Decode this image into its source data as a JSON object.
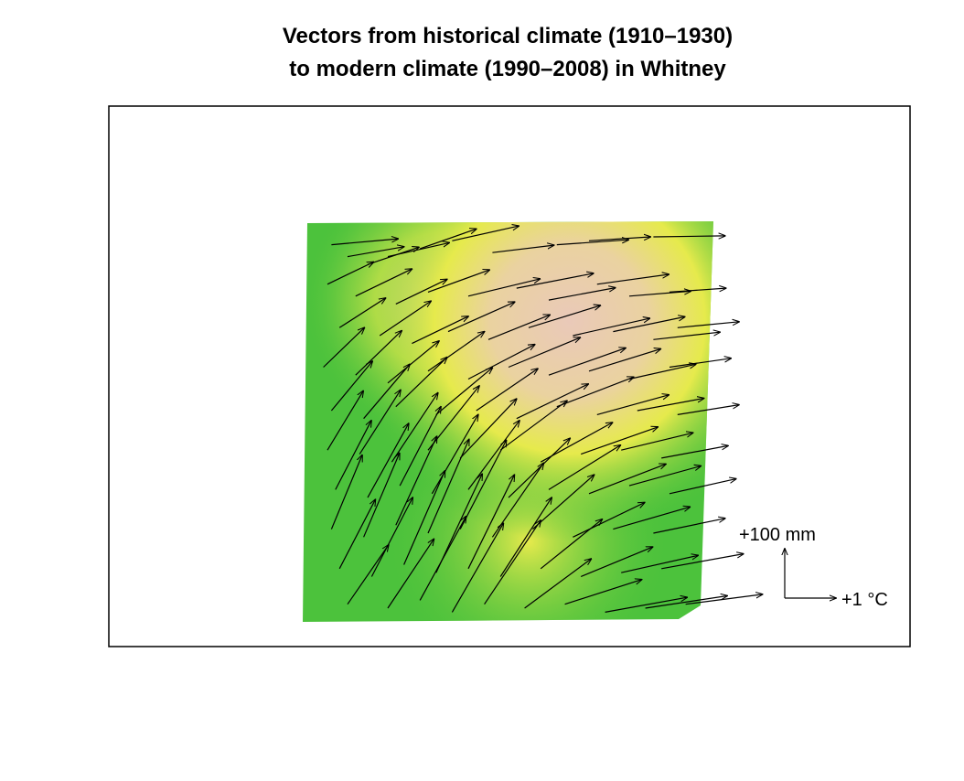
{
  "chart_data": {
    "type": "vector-field",
    "title_line1": "Vectors from historical climate (1910–1930)",
    "title_line2": "to modern climate (1990–2008) in Whitney",
    "legend": {
      "precip_label": "+100 mm",
      "temp_label": "+1 °C",
      "placement": "bottom-right"
    },
    "colors": {
      "low": "#4cc23c",
      "mid": "#e6ea4c",
      "high": "#eac9b9",
      "arrow": "#000000",
      "frame": "#000000"
    },
    "vectors_note_units": "each vector: start [temperature, precipitation] and change [+°C, +mm]",
    "vectors": [
      [
        0.06,
        0.05,
        1.3,
        0.12
      ],
      [
        0.1,
        0.08,
        1.1,
        0.2
      ],
      [
        0.15,
        0.1,
        1.0,
        0.35
      ],
      [
        0.2,
        0.08,
        1.2,
        0.28
      ],
      [
        0.28,
        0.06,
        1.1,
        0.4
      ],
      [
        0.36,
        0.04,
        1.3,
        0.3
      ],
      [
        0.46,
        0.07,
        1.2,
        0.15
      ],
      [
        0.62,
        0.05,
        1.4,
        0.1
      ],
      [
        0.7,
        0.04,
        1.2,
        0.08
      ],
      [
        0.86,
        0.03,
        1.4,
        0.02
      ],
      [
        0.05,
        0.15,
        0.9,
        0.45
      ],
      [
        0.12,
        0.18,
        1.1,
        0.55
      ],
      [
        0.22,
        0.2,
        1.0,
        0.5
      ],
      [
        0.3,
        0.17,
        1.2,
        0.45
      ],
      [
        0.4,
        0.18,
        1.4,
        0.35
      ],
      [
        0.52,
        0.16,
        1.5,
        0.3
      ],
      [
        0.6,
        0.19,
        1.3,
        0.25
      ],
      [
        0.72,
        0.15,
        1.4,
        0.2
      ],
      [
        0.8,
        0.18,
        1.2,
        0.1
      ],
      [
        0.9,
        0.17,
        1.1,
        0.08
      ],
      [
        0.08,
        0.26,
        0.9,
        0.6
      ],
      [
        0.18,
        0.28,
        1.0,
        0.7
      ],
      [
        0.26,
        0.3,
        1.1,
        0.55
      ],
      [
        0.35,
        0.27,
        1.3,
        0.6
      ],
      [
        0.45,
        0.29,
        1.2,
        0.5
      ],
      [
        0.55,
        0.26,
        1.4,
        0.45
      ],
      [
        0.66,
        0.28,
        1.5,
        0.35
      ],
      [
        0.76,
        0.27,
        1.4,
        0.3
      ],
      [
        0.86,
        0.29,
        1.3,
        0.15
      ],
      [
        0.92,
        0.26,
        1.2,
        0.12
      ],
      [
        0.04,
        0.36,
        0.8,
        0.8
      ],
      [
        0.12,
        0.38,
        0.9,
        0.9
      ],
      [
        0.2,
        0.4,
        1.0,
        0.85
      ],
      [
        0.3,
        0.37,
        1.1,
        0.8
      ],
      [
        0.4,
        0.39,
        1.3,
        0.7
      ],
      [
        0.5,
        0.36,
        1.4,
        0.6
      ],
      [
        0.6,
        0.38,
        1.5,
        0.55
      ],
      [
        0.7,
        0.37,
        1.4,
        0.45
      ],
      [
        0.8,
        0.39,
        1.3,
        0.3
      ],
      [
        0.9,
        0.36,
        1.2,
        0.18
      ],
      [
        0.06,
        0.47,
        0.8,
        1.0
      ],
      [
        0.14,
        0.49,
        0.9,
        1.1
      ],
      [
        0.22,
        0.46,
        1.0,
        1.0
      ],
      [
        0.32,
        0.48,
        1.1,
        0.95
      ],
      [
        0.42,
        0.47,
        1.2,
        0.85
      ],
      [
        0.52,
        0.49,
        1.4,
        0.7
      ],
      [
        0.62,
        0.46,
        1.5,
        0.6
      ],
      [
        0.72,
        0.48,
        1.4,
        0.4
      ],
      [
        0.82,
        0.47,
        1.3,
        0.25
      ],
      [
        0.92,
        0.48,
        1.2,
        0.2
      ],
      [
        0.05,
        0.57,
        0.7,
        1.2
      ],
      [
        0.13,
        0.58,
        0.8,
        1.3
      ],
      [
        0.21,
        0.6,
        0.9,
        1.4
      ],
      [
        0.3,
        0.57,
        1.0,
        1.3
      ],
      [
        0.38,
        0.59,
        1.1,
        1.2
      ],
      [
        0.48,
        0.57,
        1.3,
        1.0
      ],
      [
        0.58,
        0.6,
        1.4,
        0.8
      ],
      [
        0.68,
        0.58,
        1.5,
        0.55
      ],
      [
        0.78,
        0.57,
        1.4,
        0.35
      ],
      [
        0.88,
        0.59,
        1.3,
        0.25
      ],
      [
        0.07,
        0.67,
        0.7,
        1.4
      ],
      [
        0.15,
        0.69,
        0.8,
        1.5
      ],
      [
        0.23,
        0.66,
        0.8,
        1.6
      ],
      [
        0.31,
        0.68,
        0.9,
        1.6
      ],
      [
        0.4,
        0.67,
        1.0,
        1.4
      ],
      [
        0.5,
        0.69,
        1.2,
        1.2
      ],
      [
        0.6,
        0.67,
        1.4,
        0.9
      ],
      [
        0.7,
        0.68,
        1.5,
        0.6
      ],
      [
        0.8,
        0.66,
        1.4,
        0.4
      ],
      [
        0.9,
        0.68,
        1.3,
        0.3
      ],
      [
        0.06,
        0.77,
        0.6,
        1.5
      ],
      [
        0.14,
        0.79,
        0.7,
        1.7
      ],
      [
        0.22,
        0.76,
        0.8,
        1.8
      ],
      [
        0.3,
        0.78,
        0.8,
        1.9
      ],
      [
        0.38,
        0.77,
        0.9,
        1.8
      ],
      [
        0.46,
        0.79,
        1.0,
        1.5
      ],
      [
        0.56,
        0.77,
        1.2,
        1.1
      ],
      [
        0.66,
        0.79,
        1.4,
        0.7
      ],
      [
        0.76,
        0.77,
        1.5,
        0.45
      ],
      [
        0.86,
        0.78,
        1.4,
        0.3
      ],
      [
        0.08,
        0.87,
        0.7,
        1.4
      ],
      [
        0.16,
        0.89,
        0.8,
        1.6
      ],
      [
        0.24,
        0.86,
        0.8,
        1.9
      ],
      [
        0.32,
        0.88,
        0.9,
        2.0
      ],
      [
        0.4,
        0.87,
        0.9,
        1.9
      ],
      [
        0.48,
        0.89,
        1.0,
        1.6
      ],
      [
        0.58,
        0.87,
        1.2,
        1.0
      ],
      [
        0.68,
        0.89,
        1.4,
        0.6
      ],
      [
        0.78,
        0.88,
        1.5,
        0.35
      ],
      [
        0.88,
        0.87,
        1.6,
        0.3
      ],
      [
        0.1,
        0.96,
        0.8,
        1.2
      ],
      [
        0.2,
        0.97,
        0.9,
        1.4
      ],
      [
        0.28,
        0.95,
        0.9,
        1.7
      ],
      [
        0.36,
        0.98,
        1.0,
        1.8
      ],
      [
        0.44,
        0.96,
        1.1,
        1.7
      ],
      [
        0.54,
        0.97,
        1.3,
        1.0
      ],
      [
        0.64,
        0.96,
        1.5,
        0.5
      ],
      [
        0.74,
        0.98,
        1.6,
        0.3
      ],
      [
        0.84,
        0.97,
        1.6,
        0.25
      ],
      [
        0.94,
        0.96,
        1.5,
        0.2
      ]
    ]
  }
}
